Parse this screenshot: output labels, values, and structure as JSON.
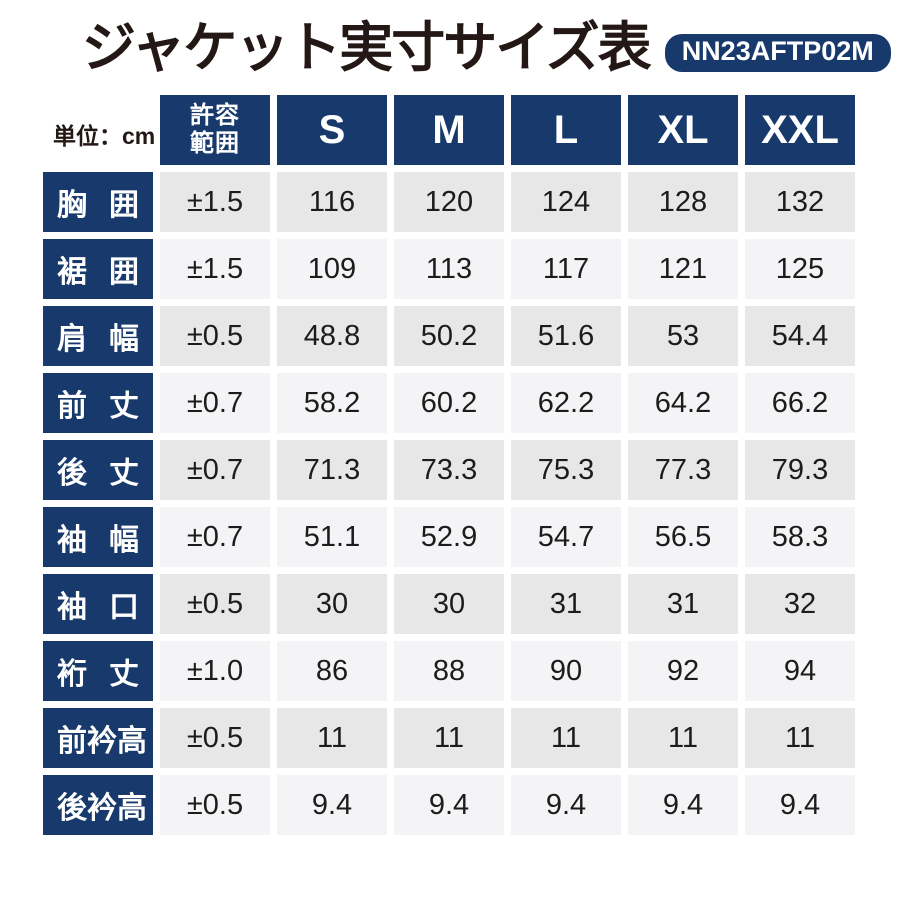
{
  "page": {
    "title": "ジャケット実寸サイズ表",
    "product_code": "NN23AFTP02M",
    "unit_label": "単位：cm"
  },
  "table": {
    "tolerance_header_lines": [
      "許容",
      "範囲"
    ],
    "size_headers": [
      "S",
      "M",
      "L",
      "XL",
      "XXL"
    ],
    "rows": [
      {
        "label": "胸囲",
        "tolerance": "±1.5",
        "values": [
          "116",
          "120",
          "124",
          "128",
          "132"
        ]
      },
      {
        "label": "裾囲",
        "tolerance": "±1.5",
        "values": [
          "109",
          "113",
          "117",
          "121",
          "125"
        ]
      },
      {
        "label": "肩幅",
        "tolerance": "±0.5",
        "values": [
          "48.8",
          "50.2",
          "51.6",
          "53",
          "54.4"
        ]
      },
      {
        "label": "前丈",
        "tolerance": "±0.7",
        "values": [
          "58.2",
          "60.2",
          "62.2",
          "64.2",
          "66.2"
        ]
      },
      {
        "label": "後丈",
        "tolerance": "±0.7",
        "values": [
          "71.3",
          "73.3",
          "75.3",
          "77.3",
          "79.3"
        ]
      },
      {
        "label": "袖幅",
        "tolerance": "±0.7",
        "values": [
          "51.1",
          "52.9",
          "54.7",
          "56.5",
          "58.3"
        ]
      },
      {
        "label": "袖口",
        "tolerance": "±0.5",
        "values": [
          "30",
          "30",
          "31",
          "31",
          "32"
        ]
      },
      {
        "label": "裄丈",
        "tolerance": "±1.0",
        "values": [
          "86",
          "88",
          "90",
          "92",
          "94"
        ]
      },
      {
        "label": "前衿高",
        "tolerance": "±0.5",
        "values": [
          "11",
          "11",
          "11",
          "11",
          "11"
        ]
      },
      {
        "label": "後衿高",
        "tolerance": "±0.5",
        "values": [
          "9.4",
          "9.4",
          "9.4",
          "9.4",
          "9.4"
        ]
      }
    ]
  },
  "colors": {
    "navy": "#17396b",
    "row_odd": "#e7e7e7",
    "row_even": "#f4f4f6",
    "text": "#1c1c1c",
    "title_text": "#231815"
  }
}
